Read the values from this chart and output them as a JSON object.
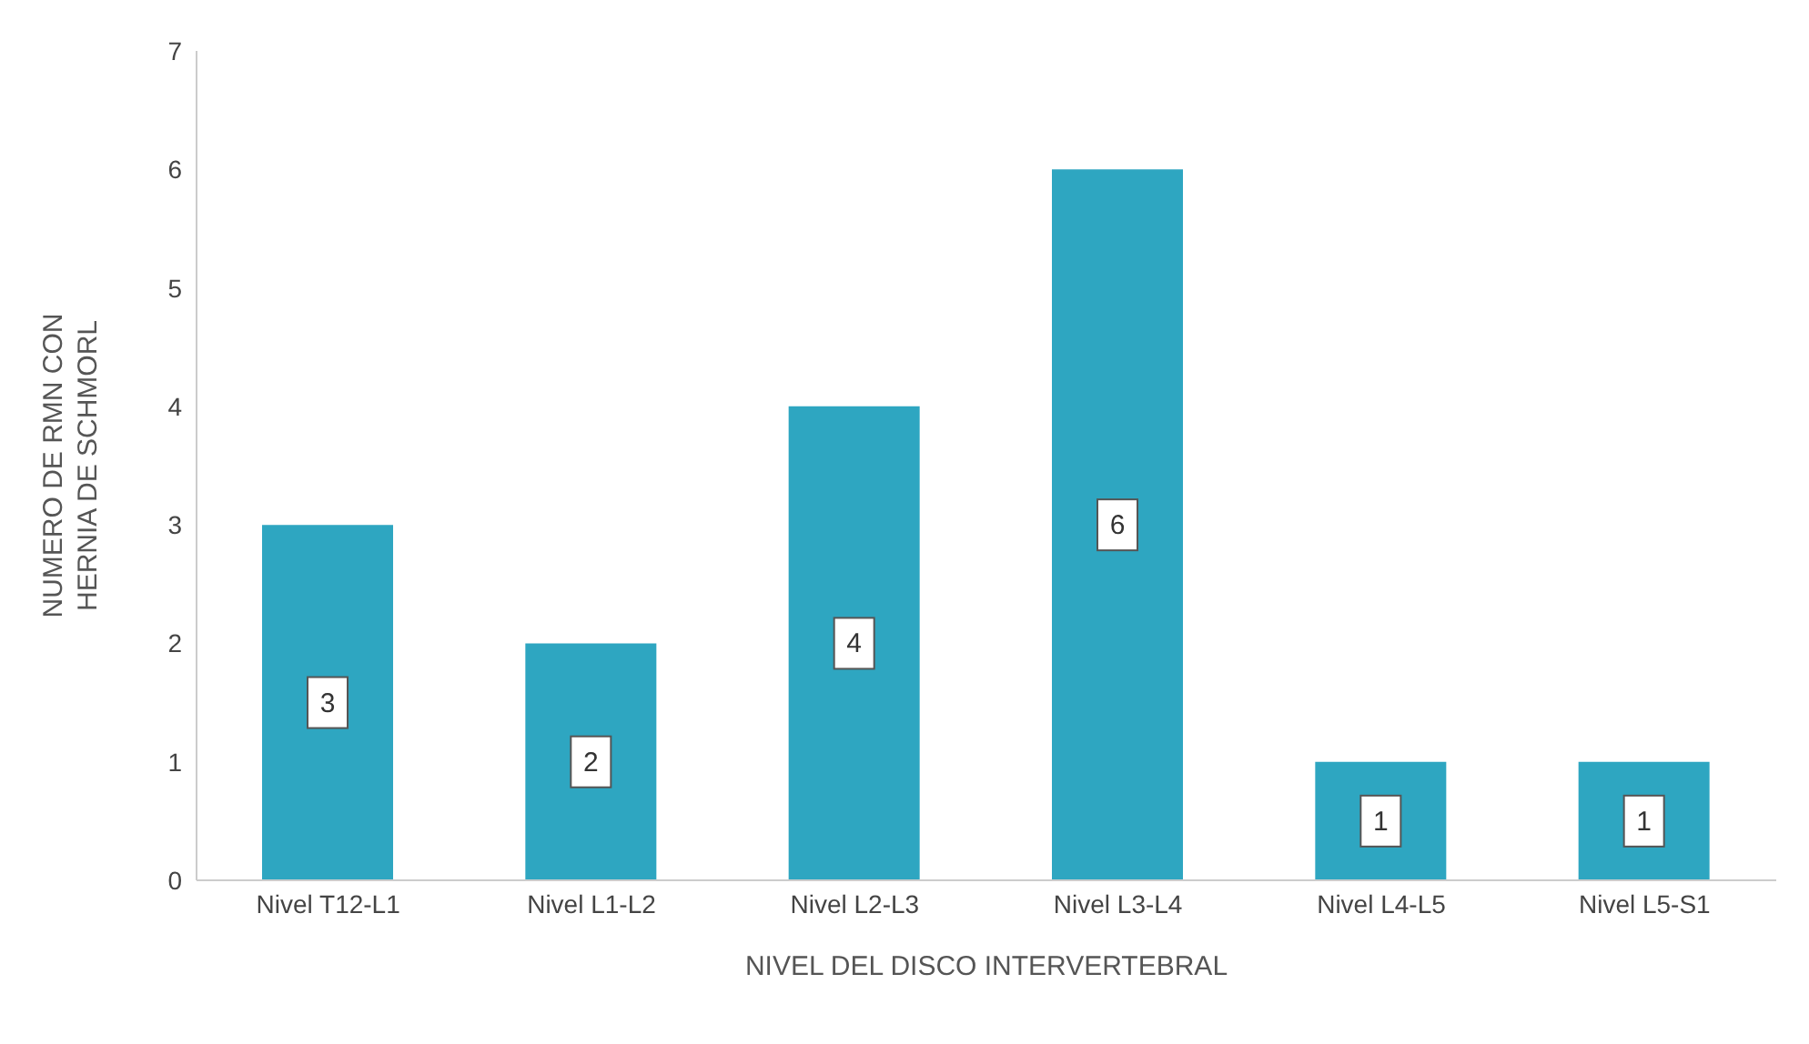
{
  "chart_data": {
    "type": "bar",
    "xlabel": "NIVEL DEL DISCO INTERVERTEBRAL",
    "ylabel": "NUMERO DE RMN CON HERNIA DE SCHMORL",
    "categories": [
      "Nivel T12-L1",
      "Nivel L1-L2",
      "Nivel L2-L3",
      "Nivel L3-L4",
      "Nivel L4-L5",
      "Nivel L5-S1"
    ],
    "values": [
      3,
      2,
      4,
      6,
      1,
      1
    ],
    "color": "#2ea6c1",
    "ylim": [
      0,
      7
    ],
    "yticks": [
      0,
      1,
      2,
      3,
      4,
      5,
      6,
      7
    ],
    "data_labels": true,
    "grid": false,
    "legend": false
  }
}
